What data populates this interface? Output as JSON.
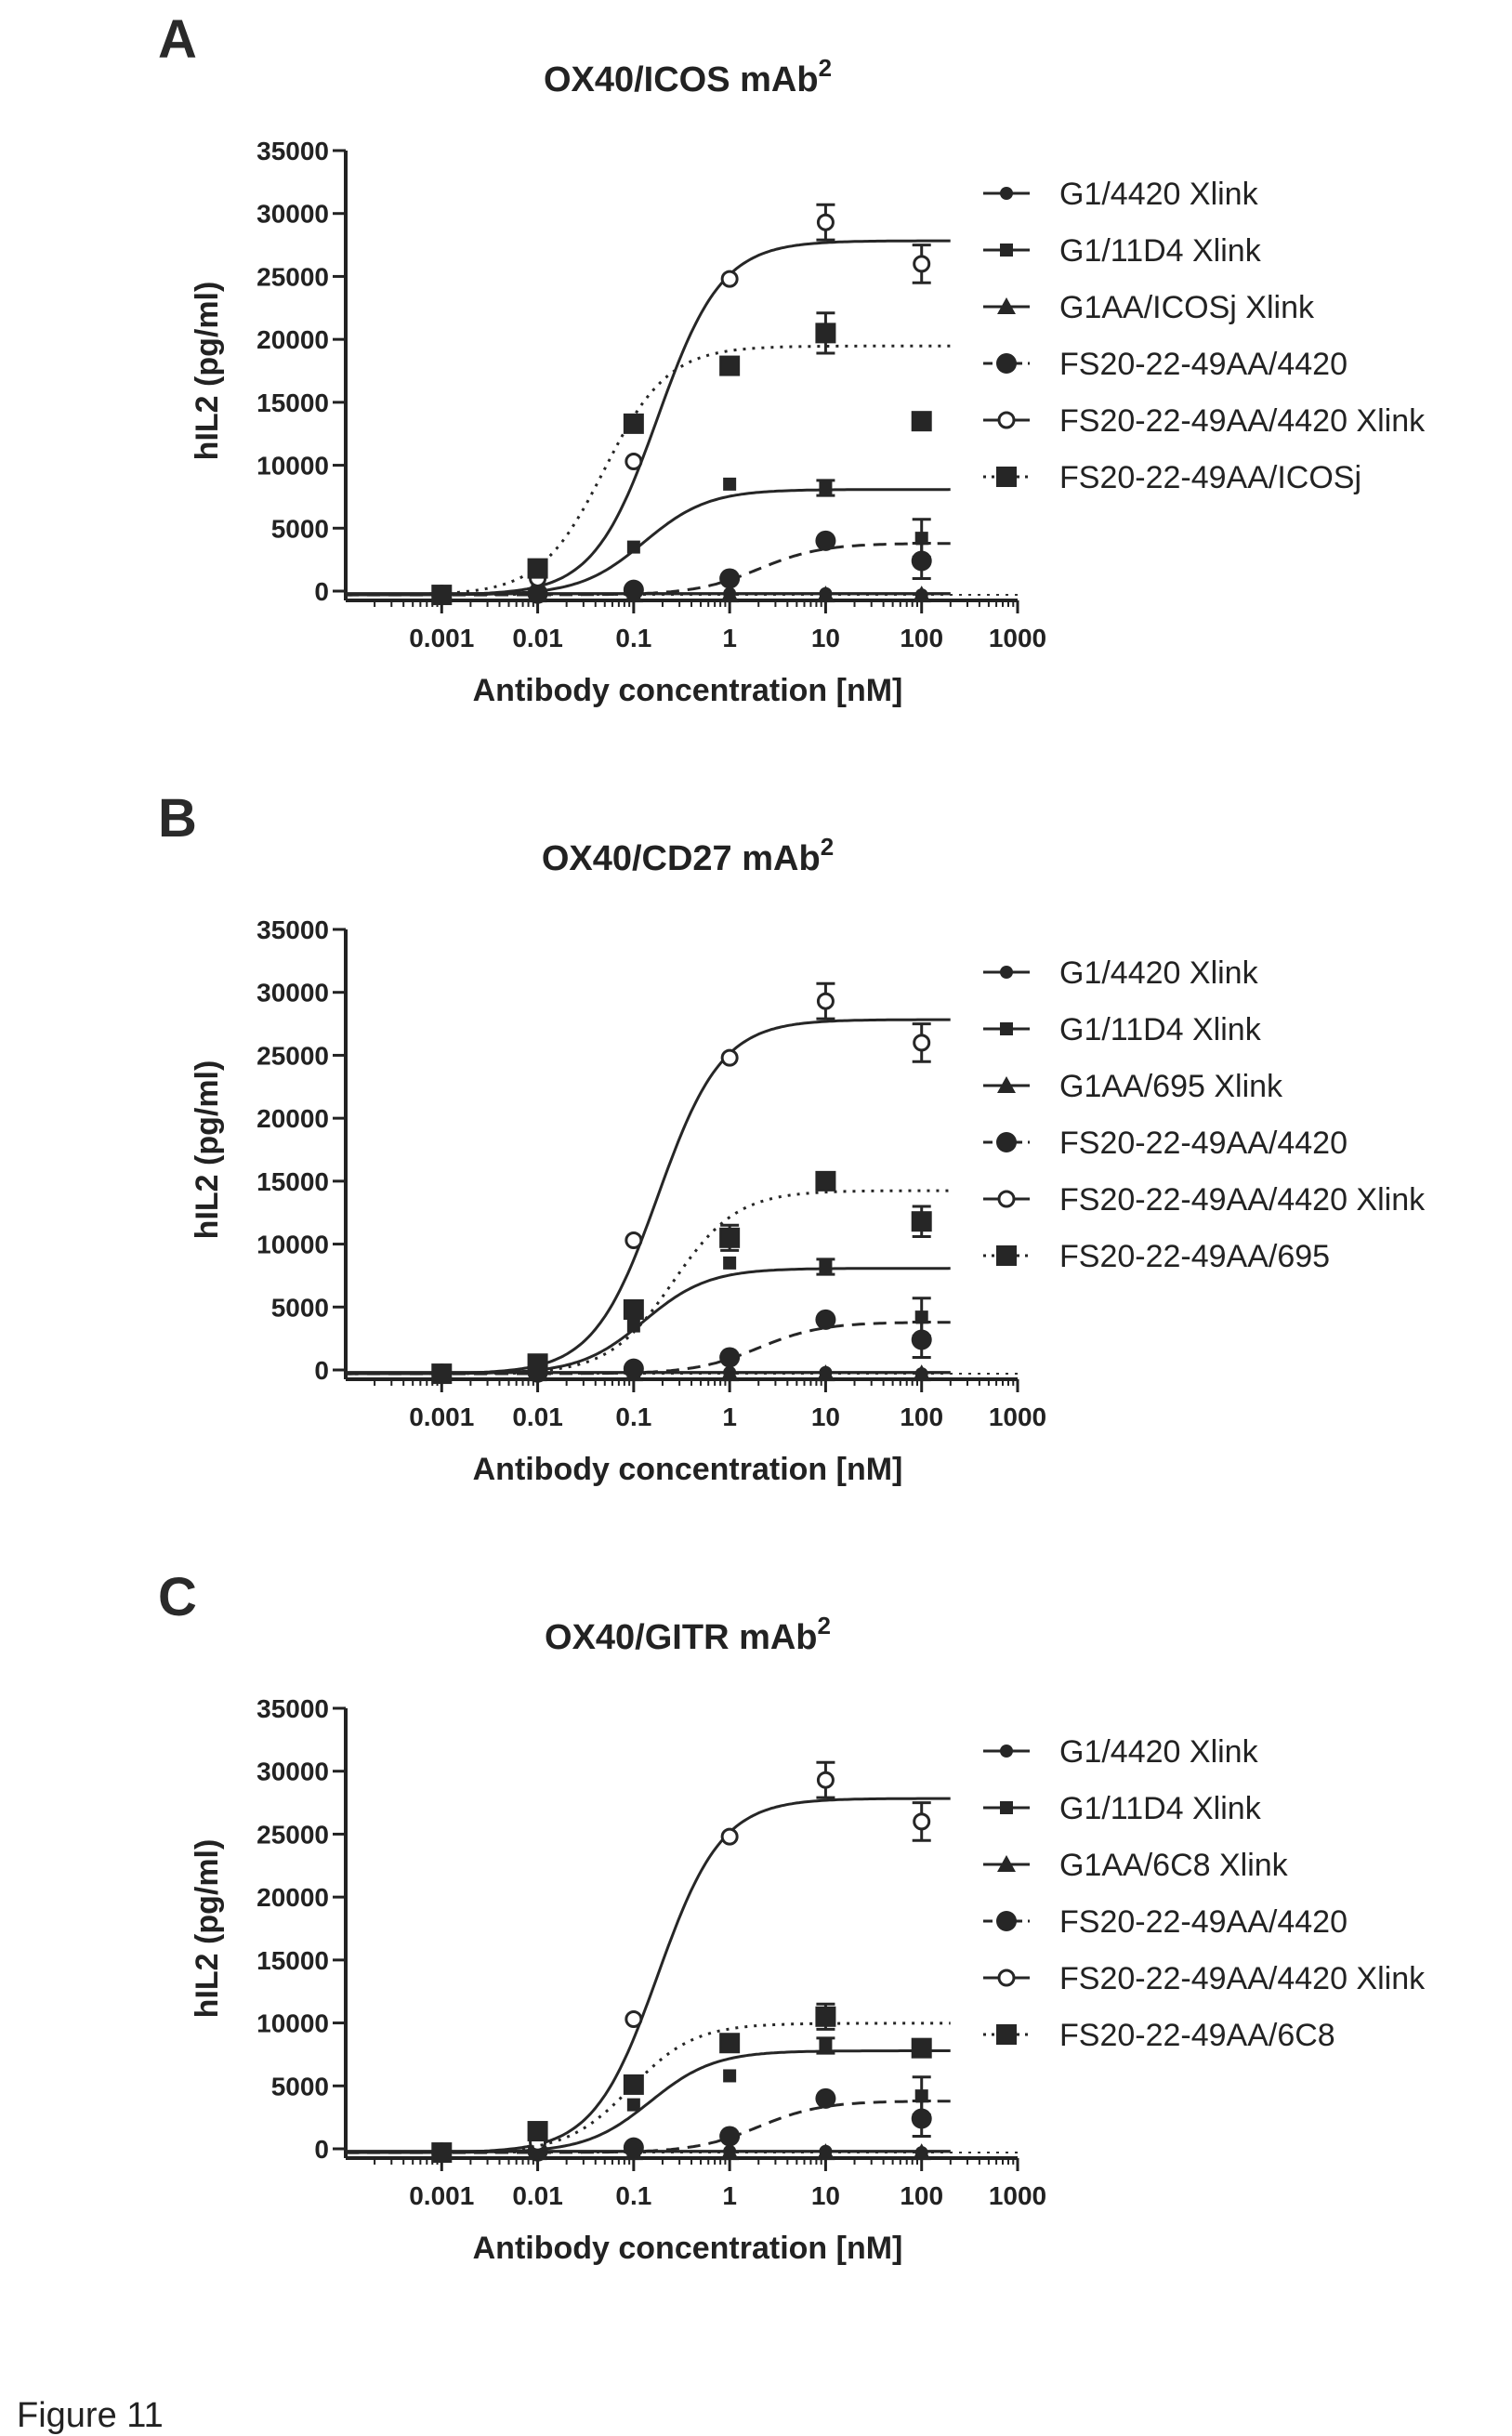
{
  "figure_caption": "Figure 11",
  "chart_data": [
    {
      "type": "scatter",
      "panel_label": "A",
      "title": "OX40/ICOS mAb",
      "title_superscript": "2",
      "xlabel": "Antibody concentration [nM]",
      "ylabel": "hIL2 (pg/ml)",
      "x_scale": "log",
      "xlim": [
        0.0001,
        1000
      ],
      "ylim": [
        0,
        35000
      ],
      "x_ticks": [
        "0.001",
        "0.01",
        "0.1",
        "1",
        "10",
        "100",
        "1000"
      ],
      "y_ticks": [
        "0",
        "5000",
        "10000",
        "15000",
        "20000",
        "25000",
        "30000",
        "35000"
      ],
      "legend_position": "right",
      "x": [
        0.001,
        0.01,
        0.1,
        1,
        10,
        100
      ],
      "series": [
        {
          "name": "G1/4420 Xlink",
          "marker": "circle-small",
          "line": "solid",
          "values": [
            -300,
            -200,
            -200,
            -200,
            -200,
            -300
          ],
          "errors": [
            0,
            0,
            0,
            0,
            0,
            0
          ]
        },
        {
          "name": "G1/11D4 Xlink",
          "marker": "square-small",
          "line": "solid",
          "values": [
            -100,
            500,
            3500,
            8500,
            8200,
            4200
          ],
          "errors": [
            0,
            0,
            0,
            0,
            600,
            1500
          ]
        },
        {
          "name": "G1AA/ICOSj Xlink",
          "marker": "triangle",
          "line": "solid",
          "values": [
            -300,
            -300,
            -300,
            -300,
            -300,
            -300
          ],
          "errors": [
            0,
            0,
            0,
            0,
            0,
            0
          ]
        },
        {
          "name": "FS20-22-49AA/4420",
          "marker": "circle",
          "line": "dashed",
          "values": [
            -300,
            -200,
            100,
            1000,
            4000,
            2400
          ],
          "errors": [
            0,
            0,
            0,
            0,
            0,
            1400
          ]
        },
        {
          "name": "FS20-22-49AA/4420 Xlink",
          "marker": "circle-open",
          "line": "solid",
          "values": [
            -300,
            1000,
            10300,
            24800,
            29300,
            26000
          ],
          "errors": [
            0,
            0,
            0,
            0,
            1400,
            1500
          ]
        },
        {
          "name": "FS20-22-49AA/ICOSj",
          "marker": "square",
          "line": "dotted",
          "values": [
            -300,
            1800,
            13300,
            17900,
            20500,
            13500
          ],
          "errors": [
            0,
            0,
            0,
            0,
            1600,
            0
          ]
        }
      ]
    },
    {
      "type": "scatter",
      "panel_label": "B",
      "title": "OX40/CD27 mAb",
      "title_superscript": "2",
      "xlabel": "Antibody concentration [nM]",
      "ylabel": "hIL2 (pg/ml)",
      "x_scale": "log",
      "xlim": [
        0.0001,
        1000
      ],
      "ylim": [
        0,
        35000
      ],
      "x_ticks": [
        "0.001",
        "0.01",
        "0.1",
        "1",
        "10",
        "100",
        "1000"
      ],
      "y_ticks": [
        "0",
        "5000",
        "10000",
        "15000",
        "20000",
        "25000",
        "30000",
        "35000"
      ],
      "legend_position": "right",
      "x": [
        0.001,
        0.01,
        0.1,
        1,
        10,
        100
      ],
      "series": [
        {
          "name": "G1/4420 Xlink",
          "marker": "circle-small",
          "line": "solid",
          "values": [
            -300,
            -200,
            -200,
            -200,
            -200,
            -300
          ],
          "errors": [
            0,
            0,
            0,
            0,
            0,
            0
          ]
        },
        {
          "name": "G1/11D4 Xlink",
          "marker": "square-small",
          "line": "solid",
          "values": [
            -100,
            500,
            3500,
            8500,
            8200,
            4200
          ],
          "errors": [
            0,
            0,
            0,
            0,
            600,
            1500
          ]
        },
        {
          "name": "G1AA/695 Xlink",
          "marker": "triangle",
          "line": "solid",
          "values": [
            -300,
            -300,
            -300,
            -300,
            -300,
            -300
          ],
          "errors": [
            0,
            0,
            0,
            0,
            0,
            0
          ]
        },
        {
          "name": "FS20-22-49AA/4420",
          "marker": "circle",
          "line": "dashed",
          "values": [
            -300,
            -200,
            100,
            1000,
            4000,
            2400
          ],
          "errors": [
            0,
            0,
            0,
            0,
            0,
            1400
          ]
        },
        {
          "name": "FS20-22-49AA/4420 Xlink",
          "marker": "circle-open",
          "line": "solid",
          "values": [
            -300,
            500,
            10300,
            24800,
            29300,
            26000
          ],
          "errors": [
            0,
            0,
            0,
            0,
            1400,
            1500
          ]
        },
        {
          "name": "FS20-22-49AA/695",
          "marker": "square",
          "line": "dotted",
          "values": [
            -300,
            500,
            4800,
            10500,
            15000,
            11800
          ],
          "errors": [
            0,
            0,
            0,
            1000,
            0,
            1200
          ]
        }
      ]
    },
    {
      "type": "scatter",
      "panel_label": "C",
      "title": "OX40/GITR mAb",
      "title_superscript": "2",
      "xlabel": "Antibody concentration [nM]",
      "ylabel": "hIL2 (pg/ml)",
      "x_scale": "log",
      "xlim": [
        0.0001,
        1000
      ],
      "ylim": [
        0,
        35000
      ],
      "x_ticks": [
        "0.001",
        "0.01",
        "0.1",
        "1",
        "10",
        "100",
        "1000"
      ],
      "y_ticks": [
        "0",
        "5000",
        "10000",
        "15000",
        "20000",
        "25000",
        "30000",
        "35000"
      ],
      "legend_position": "right",
      "x": [
        0.001,
        0.01,
        0.1,
        1,
        10,
        100
      ],
      "series": [
        {
          "name": "G1/4420 Xlink",
          "marker": "circle-small",
          "line": "solid",
          "values": [
            -300,
            -200,
            -200,
            -200,
            -200,
            -300
          ],
          "errors": [
            0,
            0,
            0,
            0,
            0,
            0
          ]
        },
        {
          "name": "G1/11D4 Xlink",
          "marker": "square-small",
          "line": "solid",
          "values": [
            -100,
            500,
            3500,
            5800,
            8200,
            4200
          ],
          "errors": [
            0,
            0,
            0,
            0,
            600,
            1500
          ]
        },
        {
          "name": "G1AA/6C8 Xlink",
          "marker": "triangle",
          "line": "solid",
          "values": [
            -300,
            -300,
            -300,
            -300,
            -300,
            -300
          ],
          "errors": [
            0,
            0,
            0,
            0,
            0,
            0
          ]
        },
        {
          "name": "FS20-22-49AA/4420",
          "marker": "circle",
          "line": "dashed",
          "values": [
            -300,
            -200,
            100,
            1000,
            4000,
            2400
          ],
          "errors": [
            0,
            0,
            0,
            0,
            0,
            1400
          ]
        },
        {
          "name": "FS20-22-49AA/4420 Xlink",
          "marker": "circle-open",
          "line": "solid",
          "values": [
            -300,
            500,
            10300,
            24800,
            29300,
            26000
          ],
          "errors": [
            0,
            0,
            0,
            0,
            1400,
            1500
          ]
        },
        {
          "name": "FS20-22-49AA/6C8",
          "marker": "square",
          "line": "dotted",
          "values": [
            -300,
            1400,
            5100,
            8400,
            10500,
            8000
          ],
          "errors": [
            0,
            0,
            0,
            0,
            1000,
            0
          ]
        }
      ]
    }
  ]
}
